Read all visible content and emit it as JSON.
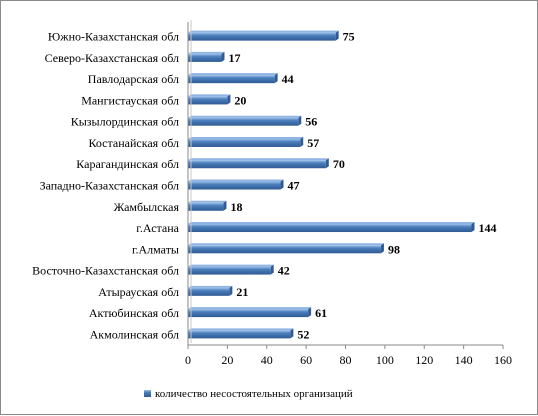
{
  "chart_data": {
    "type": "bar",
    "orientation": "horizontal",
    "categories": [
      "Южно-Казахстанская обл",
      "Северо-Казахстанская обл",
      "Павлодарская обл",
      "Мангистауская обл",
      "Кызылординская обл",
      "Костанайская обл",
      "Карагандинская обл",
      "Западно-Казахстанская обл",
      "Жамбылская",
      "г.Астана",
      "г.Алматы",
      "Восточно-Казахстанская обл",
      "Атырауская обл",
      "Актюбинская обл",
      "Акмолинская обл"
    ],
    "series": [
      {
        "name": "количество несостоятельных организаций",
        "values": [
          75,
          17,
          44,
          20,
          56,
          57,
          70,
          47,
          18,
          144,
          98,
          42,
          21,
          61,
          52
        ],
        "color": "#4a7ebb"
      }
    ],
    "xlim": [
      0,
      160
    ],
    "xticks": [
      0,
      20,
      40,
      60,
      80,
      100,
      120,
      140,
      160
    ],
    "grid": false,
    "data_labels": true,
    "legend_position": "bottom"
  },
  "colors": {
    "bar_fill": "#4a7ebb",
    "bar_highlight": "#8fb4e3",
    "bar_shadow": "#2f5a94",
    "axis": "#8a8a8a"
  }
}
